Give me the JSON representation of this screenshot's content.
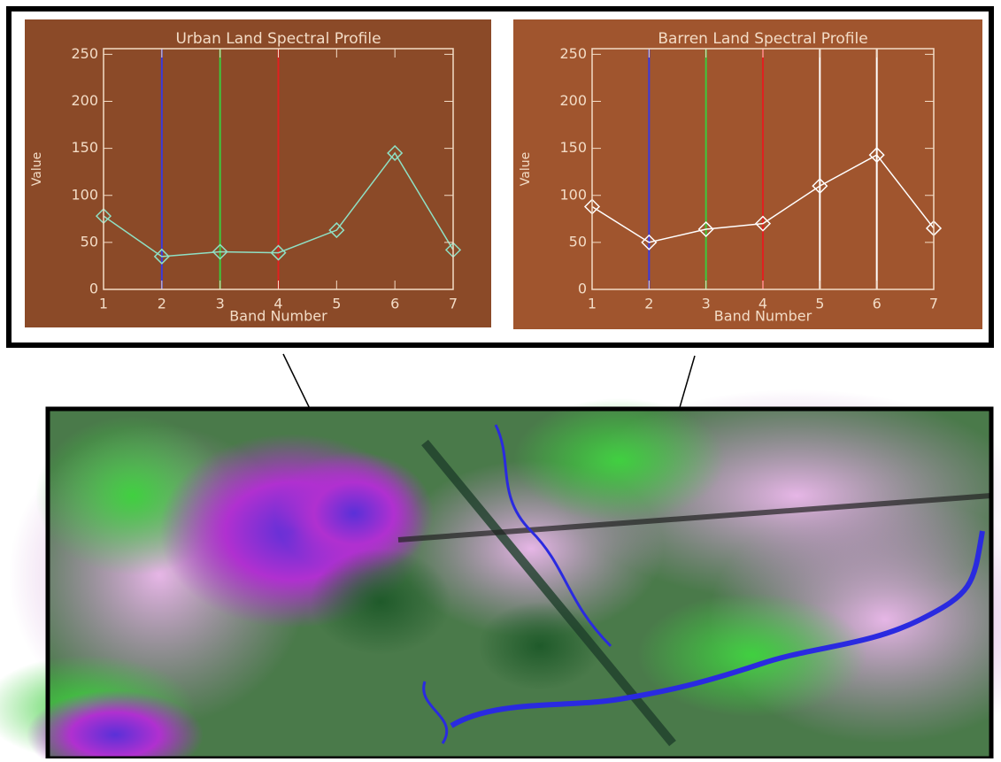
{
  "chart_data": [
    {
      "type": "line",
      "title": "Urban Land Spectral Profile",
      "x_label": "Band Number",
      "y_label": "Value",
      "x": [
        1,
        2,
        3,
        4,
        5,
        6,
        7
      ],
      "series": [
        {
          "name": "Urban",
          "color": "#8fe0c4",
          "values": [
            78,
            35,
            40,
            39,
            63,
            145,
            42
          ]
        }
      ],
      "band_markers": [
        {
          "x": 2,
          "color": "#3a3adc"
        },
        {
          "x": 3,
          "color": "#3cc83c"
        },
        {
          "x": 4,
          "color": "#e02020"
        }
      ],
      "xlim": [
        1,
        7
      ],
      "ylim": [
        0,
        256
      ],
      "xticks": [
        1,
        2,
        3,
        4,
        5,
        6,
        7
      ],
      "yticks": [
        0,
        50,
        100,
        150,
        200,
        250
      ],
      "background": "#8b4a28"
    },
    {
      "type": "line",
      "title": "Barren Land Spectral Profile",
      "x_label": "Band Number",
      "y_label": "Value",
      "x": [
        1,
        2,
        3,
        4,
        5,
        6,
        7
      ],
      "series": [
        {
          "name": "Barren",
          "color": "#ffffff",
          "values": [
            88,
            50,
            64,
            70,
            110,
            143,
            65
          ]
        }
      ],
      "band_markers": [
        {
          "x": 2,
          "color": "#3a3adc"
        },
        {
          "x": 3,
          "color": "#3cc83c"
        },
        {
          "x": 4,
          "color": "#e02020"
        },
        {
          "x": 5,
          "color": "#ffffff"
        },
        {
          "x": 6,
          "color": "#ffffff"
        }
      ],
      "xlim": [
        1,
        7
      ],
      "ylim": [
        0,
        256
      ],
      "xticks": [
        1,
        2,
        3,
        4,
        5,
        6,
        7
      ],
      "yticks": [
        0,
        50,
        100,
        150,
        200,
        250
      ],
      "background": "#a0552e"
    }
  ]
}
